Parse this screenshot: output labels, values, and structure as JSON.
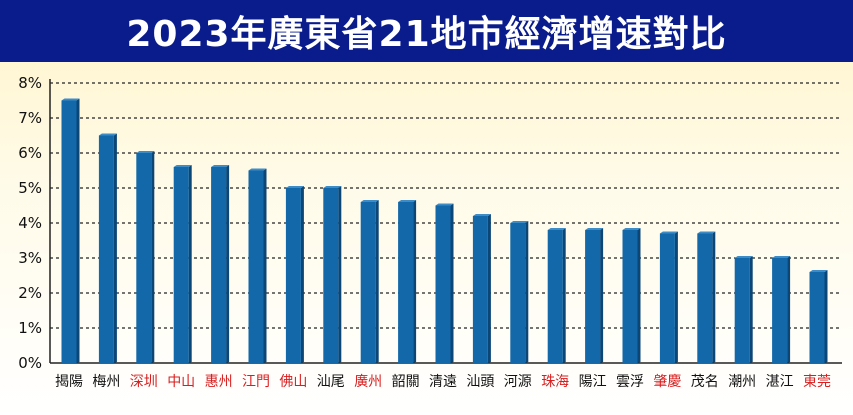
{
  "chart_data": {
    "type": "bar",
    "title": "2023年廣東省21地市經濟增速對比",
    "categories": [
      "揭陽",
      "梅州",
      "深圳",
      "中山",
      "惠州",
      "江門",
      "佛山",
      "汕尾",
      "廣州",
      "韶關",
      "清遠",
      "汕頭",
      "河源",
      "珠海",
      "陽江",
      "雲浮",
      "肇慶",
      "茂名",
      "潮州",
      "湛江",
      "東莞"
    ],
    "values": [
      7.5,
      6.5,
      6.0,
      5.6,
      5.6,
      5.5,
      5.0,
      5.0,
      4.6,
      4.6,
      4.5,
      4.2,
      4.0,
      3.8,
      3.8,
      3.8,
      3.7,
      3.7,
      3.0,
      3.0,
      2.6
    ],
    "highlighted": [
      "深圳",
      "中山",
      "惠州",
      "江門",
      "佛山",
      "廣州",
      "珠海",
      "肇慶",
      "東莞"
    ],
    "ylim": [
      0,
      8
    ],
    "yticks": [
      "0%",
      "1%",
      "2%",
      "3%",
      "4%",
      "5%",
      "6%",
      "7%",
      "8%"
    ],
    "xlabel": "",
    "ylabel": "",
    "grid": true,
    "colors": {
      "bar": "#1268a8",
      "bar_side": "#0b4677",
      "highlight_label": "#d81e1e",
      "normal_label": "#111111",
      "title_bg": "#0a1b8c"
    }
  }
}
